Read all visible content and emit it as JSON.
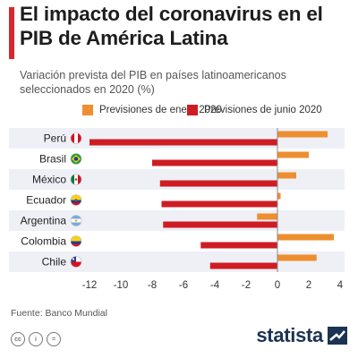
{
  "title": "El impacto del coronavirus en el PIB de América Latina",
  "subtitle": "Variación prevista del PIB en países latinoamericanos seleccionados en 2020 (%)",
  "colors": {
    "accent": "#d7282f",
    "january": "#ee8e2f",
    "june": "#cf1c24",
    "row_band": "#eef0f6",
    "brand": "#1d3353"
  },
  "chart_data": {
    "type": "bar",
    "orientation": "horizontal",
    "categories": [
      "Perú",
      "Brasil",
      "México",
      "Ecuador",
      "Argentina",
      "Colombia",
      "Chile"
    ],
    "series": [
      {
        "name": "Previsiones de enero 2020",
        "color": "#ee8e2f",
        "values": [
          3.2,
          2.0,
          1.2,
          0.2,
          -1.3,
          3.6,
          2.5
        ]
      },
      {
        "name": "Previsiones de junio 2020",
        "color": "#cf1c24",
        "values": [
          -12.0,
          -8.0,
          -7.5,
          -7.4,
          -7.3,
          -4.9,
          -4.3
        ]
      }
    ],
    "xlim": [
      -12,
      4
    ],
    "xticks": [
      "-12",
      "-10",
      "-8",
      "-6",
      "-4",
      "-2",
      "0",
      "2",
      "4"
    ],
    "legend_position": "top",
    "grid": false,
    "flags": [
      "peru",
      "brazil",
      "mexico",
      "ecuador",
      "argentina",
      "colombia",
      "chile"
    ]
  },
  "source": "Fuente: Banco Mundial",
  "license_icons": [
    "cc",
    "i",
    "="
  ],
  "brand": "statista"
}
